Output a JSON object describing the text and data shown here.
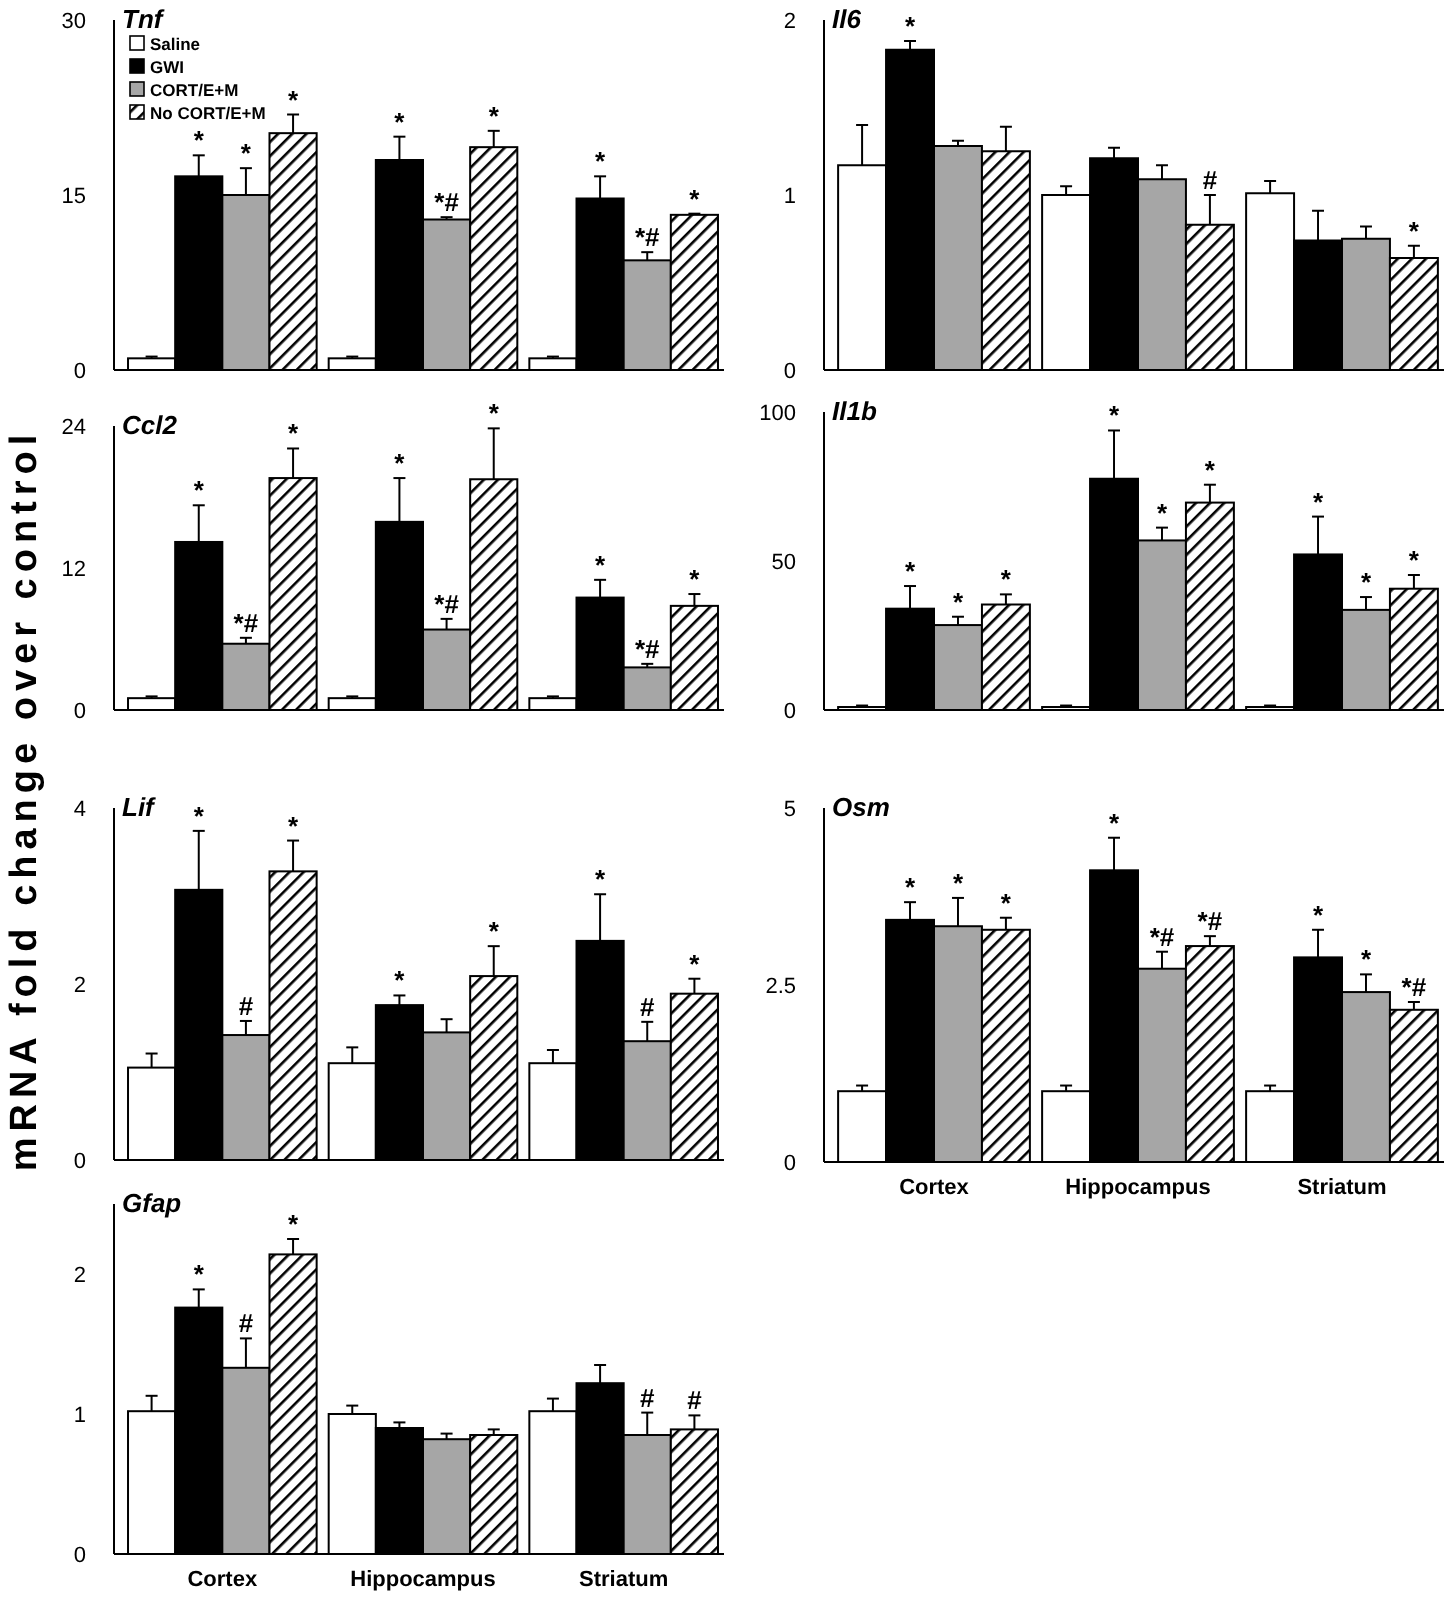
{
  "chart_data": [
    {
      "type": "bar",
      "title": "Tnf",
      "ylabel": "mRNA fold change over control",
      "categories": [
        null,
        null,
        null
      ],
      "ylim": [
        0,
        30
      ],
      "yticks": [
        0,
        15,
        30
      ],
      "tick_labels": "y",
      "legend": "top left",
      "series": [
        {
          "name": "Saline",
          "color": "#ffffff",
          "values": [
            1,
            1,
            1
          ],
          "errors": [
            [
              1,
              1.15
            ],
            [
              1,
              1.15
            ],
            [
              1,
              1.15
            ]
          ]
        },
        {
          "name": "GWI",
          "color": "#000000",
          "values": [
            16.6,
            18,
            14.7
          ],
          "errors": [
            [
              16.6,
              18.4
            ],
            [
              18,
              20
            ],
            [
              14.7,
              16.6
            ]
          ],
          "value_labels": [
            "*",
            "*",
            "*"
          ]
        },
        {
          "name": "CORT/E+M",
          "color": "#a6a6a6",
          "values": [
            15,
            12.9,
            9.4
          ],
          "errors": [
            [
              15,
              17.3
            ],
            [
              12.9,
              13.1
            ],
            [
              9.4,
              10.1
            ]
          ],
          "value_labels": [
            "*",
            "*#",
            "*#"
          ]
        },
        {
          "name": "No CORT/E+M",
          "color": "#000000",
          "values": [
            20.3,
            19.1,
            13.3
          ],
          "errors": [
            [
              20.3,
              21.9
            ],
            [
              19.1,
              20.5
            ],
            [
              13.3,
              13.4
            ]
          ],
          "value_labels": [
            "*",
            "*",
            "*"
          ]
        }
      ]
    },
    {
      "type": "bar",
      "title": "Il6",
      "categories": [
        null,
        null,
        null
      ],
      "ylim": [
        0,
        2
      ],
      "yticks": [
        0,
        1,
        2
      ],
      "tick_labels": "y",
      "series": [
        {
          "color": "#ffffff",
          "values": [
            1.17,
            1,
            1.01
          ],
          "errors": [
            [
              1.17,
              1.4
            ],
            [
              1,
              1.05
            ],
            [
              1.01,
              1.08
            ]
          ]
        },
        {
          "color": "#000000",
          "values": [
            1.83,
            1.21,
            0.74
          ],
          "errors": [
            [
              1.83,
              1.88
            ],
            [
              1.21,
              1.27
            ],
            [
              0.74,
              0.91
            ]
          ],
          "value_labels": [
            "*",
            null,
            null
          ]
        },
        {
          "color": "#a6a6a6",
          "values": [
            1.28,
            1.09,
            0.75
          ],
          "errors": [
            [
              1.28,
              1.31
            ],
            [
              1.09,
              1.17
            ],
            [
              0.75,
              0.82
            ]
          ]
        },
        {
          "color": "#000000",
          "values": [
            1.25,
            0.83,
            0.64
          ],
          "errors": [
            [
              1.25,
              1.39
            ],
            [
              0.83,
              1
            ],
            [
              0.64,
              0.71
            ]
          ],
          "value_labels": [
            null,
            "#",
            "*"
          ]
        }
      ]
    },
    {
      "type": "bar",
      "title": "Ccl2",
      "categories": [
        null,
        null,
        null
      ],
      "ylim": [
        0,
        24
      ],
      "yticks": [
        0,
        12,
        24
      ],
      "tick_labels": "y",
      "series": [
        {
          "color": "#ffffff",
          "values": [
            1,
            1,
            1
          ],
          "errors": [
            [
              1,
              1.15
            ],
            [
              1,
              1.15
            ],
            [
              1,
              1.15
            ]
          ]
        },
        {
          "color": "#000000",
          "values": [
            14.2,
            15.9,
            9.5
          ],
          "errors": [
            [
              14.2,
              17.3
            ],
            [
              15.9,
              19.6
            ],
            [
              9.5,
              11
            ]
          ],
          "value_labels": [
            "*",
            "*",
            "*"
          ]
        },
        {
          "color": "#a6a6a6",
          "values": [
            5.6,
            6.8,
            3.6
          ],
          "errors": [
            [
              5.6,
              6.1
            ],
            [
              6.8,
              7.7
            ],
            [
              3.6,
              3.9
            ]
          ],
          "value_labels": [
            "*#",
            "*#",
            "*#"
          ]
        },
        {
          "color": "#000000",
          "values": [
            19.6,
            19.5,
            8.8
          ],
          "errors": [
            [
              19.6,
              22.1
            ],
            [
              19.5,
              23.8
            ],
            [
              8.8,
              9.8
            ]
          ],
          "value_labels": [
            "*",
            "*",
            "*"
          ]
        }
      ]
    },
    {
      "type": "bar",
      "title": "Il1b",
      "categories": [
        null,
        null,
        null
      ],
      "ylim": [
        0,
        100
      ],
      "yticks": [
        0,
        50,
        100
      ],
      "tick_labels": "y",
      "series": [
        {
          "color": "#ffffff",
          "values": [
            1,
            1,
            1
          ],
          "errors": [
            [
              1,
              1.5
            ],
            [
              1,
              1.5
            ],
            [
              1,
              1.5
            ]
          ]
        },
        {
          "color": "#000000",
          "values": [
            34,
            77.6,
            52.2
          ],
          "errors": [
            [
              34,
              41.6
            ],
            [
              77.6,
              93.8
            ],
            [
              52.2,
              64.9
            ]
          ],
          "value_labels": [
            "*",
            "*",
            "*"
          ]
        },
        {
          "color": "#a6a6a6",
          "values": [
            28.5,
            56.9,
            33.6
          ],
          "errors": [
            [
              28.5,
              31.3
            ],
            [
              56.9,
              61.2
            ],
            [
              33.6,
              37.9
            ]
          ],
          "value_labels": [
            "*",
            "*",
            "*"
          ]
        },
        {
          "color": "#000000",
          "values": [
            35.4,
            69.6,
            40.7
          ],
          "errors": [
            [
              35.4,
              38.8
            ],
            [
              69.6,
              75.6
            ],
            [
              40.7,
              45.3
            ]
          ],
          "value_labels": [
            "*",
            "*",
            "*"
          ]
        }
      ]
    },
    {
      "type": "bar",
      "title": "Lif",
      "categories": [
        null,
        null,
        null
      ],
      "ylim": [
        0,
        4
      ],
      "yticks": [
        0,
        2,
        4
      ],
      "tick_labels": "y",
      "series": [
        {
          "color": "#ffffff",
          "values": [
            1.05,
            1.1,
            1.1
          ],
          "errors": [
            [
              1.05,
              1.21
            ],
            [
              1.1,
              1.28
            ],
            [
              1.1,
              1.25
            ]
          ]
        },
        {
          "color": "#000000",
          "values": [
            3.07,
            1.76,
            2.49
          ],
          "errors": [
            [
              3.07,
              3.74
            ],
            [
              1.76,
              1.87
            ],
            [
              2.49,
              3.02
            ]
          ],
          "value_labels": [
            "*",
            "*",
            "*"
          ]
        },
        {
          "color": "#a6a6a6",
          "values": [
            1.42,
            1.45,
            1.35
          ],
          "errors": [
            [
              1.42,
              1.58
            ],
            [
              1.45,
              1.6
            ],
            [
              1.35,
              1.57
            ]
          ],
          "value_labels": [
            "#",
            null,
            "#"
          ]
        },
        {
          "color": "#000000",
          "values": [
            3.28,
            2.09,
            1.89
          ],
          "errors": [
            [
              3.28,
              3.63
            ],
            [
              2.09,
              2.43
            ],
            [
              1.89,
              2.06
            ]
          ],
          "value_labels": [
            "*",
            "*",
            "*"
          ]
        }
      ]
    },
    {
      "type": "bar",
      "title": "Osm",
      "categories": [
        "Cortex",
        "Hippocampus",
        "Striatum"
      ],
      "ylim": [
        0,
        5
      ],
      "yticks": [
        0,
        2.5,
        5
      ],
      "series": [
        {
          "color": "#ffffff",
          "values": [
            1,
            1,
            1
          ],
          "errors": [
            [
              1,
              1.08
            ],
            [
              1,
              1.08
            ],
            [
              1,
              1.08
            ]
          ]
        },
        {
          "color": "#000000",
          "values": [
            3.42,
            4.12,
            2.89
          ],
          "errors": [
            [
              3.42,
              3.67
            ],
            [
              4.12,
              4.58
            ],
            [
              2.89,
              3.28
            ]
          ],
          "value_labels": [
            "*",
            "*",
            "*"
          ]
        },
        {
          "color": "#a6a6a6",
          "values": [
            3.33,
            2.73,
            2.4
          ],
          "errors": [
            [
              3.33,
              3.73
            ],
            [
              2.73,
              2.97
            ],
            [
              2.4,
              2.65
            ]
          ],
          "value_labels": [
            "*",
            "*#",
            "*"
          ]
        },
        {
          "color": "#000000",
          "values": [
            3.28,
            3.05,
            2.15
          ],
          "errors": [
            [
              3.28,
              3.45
            ],
            [
              3.05,
              3.19
            ],
            [
              2.15,
              2.26
            ]
          ],
          "value_labels": [
            "*",
            "*#",
            "*#"
          ]
        }
      ]
    },
    {
      "type": "bar",
      "title": "Gfap",
      "categories": [
        "Cortex",
        "Hippocampus",
        "Striatum"
      ],
      "ylim": [
        0,
        2.5
      ],
      "yticks": [
        0,
        1,
        2
      ],
      "series": [
        {
          "color": "#ffffff",
          "values": [
            1.02,
            1,
            1.02
          ],
          "errors": [
            [
              1.02,
              1.13
            ],
            [
              1,
              1.06
            ],
            [
              1.02,
              1.11
            ]
          ]
        },
        {
          "color": "#000000",
          "values": [
            1.76,
            0.9,
            1.22
          ],
          "errors": [
            [
              1.76,
              1.89
            ],
            [
              0.9,
              0.94
            ],
            [
              1.22,
              1.35
            ]
          ],
          "value_labels": [
            "*",
            null,
            null
          ]
        },
        {
          "color": "#a6a6a6",
          "values": [
            1.33,
            0.82,
            0.85
          ],
          "errors": [
            [
              1.33,
              1.54
            ],
            [
              0.82,
              0.86
            ],
            [
              0.85,
              1.01
            ]
          ],
          "value_labels": [
            "#",
            null,
            "#"
          ]
        },
        {
          "color": "#000000",
          "values": [
            2.14,
            0.85,
            0.89
          ],
          "errors": [
            [
              2.14,
              2.25
            ],
            [
              0.85,
              0.89
            ],
            [
              0.89,
              0.99
            ]
          ],
          "value_labels": [
            "*",
            null,
            "#"
          ]
        }
      ]
    }
  ]
}
